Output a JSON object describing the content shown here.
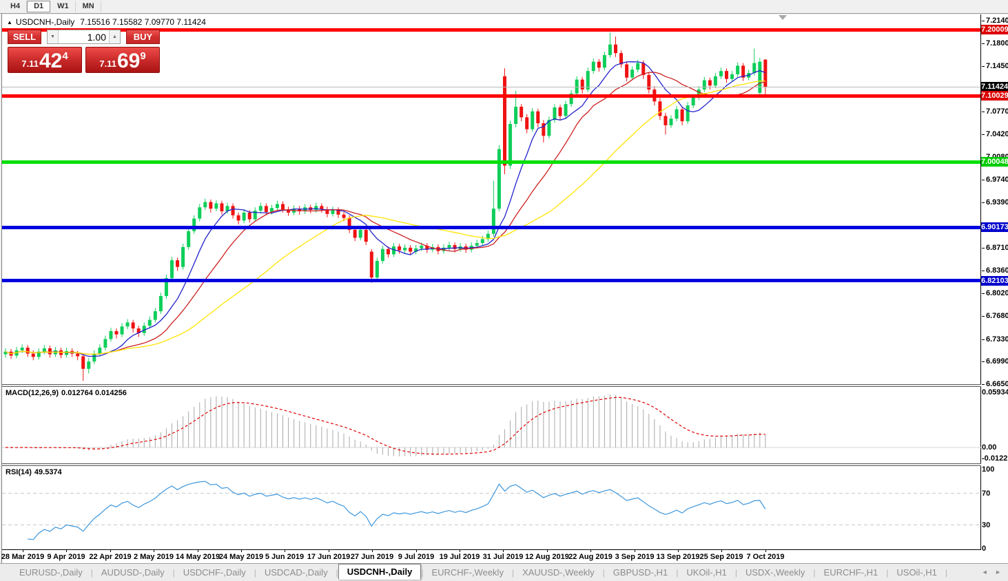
{
  "window": {
    "timeframes": [
      {
        "label": "H4",
        "active": false
      },
      {
        "label": "D1",
        "active": true
      },
      {
        "label": "W1",
        "active": false
      },
      {
        "label": "MN",
        "active": false
      }
    ]
  },
  "chart": {
    "collapse_arrow": "▲",
    "symbol_title": "USDCNH-,Daily",
    "ohlc_line": "7.15516 7.15582 7.09770 7.11424"
  },
  "trade": {
    "sell_label": "SELL",
    "buy_label": "BUY",
    "volume": "1.00",
    "spin_down": "▼",
    "spin_up": "▲",
    "sell_price": {
      "prefix": "7.11",
      "main": "42",
      "sup": "4"
    },
    "buy_price": {
      "prefix": "7.11",
      "main": "69",
      "sup": "9"
    }
  },
  "price_axis": {
    "ticks": [
      "7.21400",
      "7.18000",
      "7.14500",
      "7.07700",
      "7.04200",
      "7.00800",
      "6.97400",
      "6.93900",
      "6.87100",
      "6.83600",
      "6.80200",
      "6.76800",
      "6.73300",
      "6.69900",
      "6.66500"
    ],
    "badges": [
      {
        "label": "7.20009",
        "value": 7.20009,
        "color": "#dd0000"
      },
      {
        "label": "7.11424",
        "value": 7.11424,
        "color": "#000000"
      },
      {
        "label": "7.10029",
        "value": 7.10029,
        "color": "#dd0000"
      },
      {
        "label": "7.00048",
        "value": 7.00048,
        "color": "#00cc00"
      },
      {
        "label": "6.90173",
        "value": 6.90173,
        "color": "#0000cc"
      },
      {
        "label": "6.82103",
        "value": 6.82103,
        "color": "#0000cc"
      }
    ]
  },
  "chart_data": {
    "type": "candlestick",
    "symbol": "USDCNH-",
    "timeframe": "Daily",
    "ylim": [
      6.665,
      7.2234
    ],
    "up_color": "#0fce5a",
    "down_color": "#ef1212",
    "x_dates": [
      "28 Mar 2019",
      "9 Apr 2019",
      "22 Apr 2019",
      "2 May 2019",
      "14 May 2019",
      "24 May 2019",
      "5 Jun 2019",
      "17 Jun 2019",
      "27 Jun 2019",
      "9 Jul 2019",
      "19 Jul 2019",
      "31 Jul 2019",
      "12 Aug 2019",
      "22 Aug 2019",
      "3 Sep 2019",
      "13 Sep 2019",
      "25 Sep 2019",
      "7 Oct 2019"
    ],
    "candles_ohlc": [
      [
        6.71,
        6.719,
        6.705,
        6.714
      ],
      [
        6.714,
        6.718,
        6.703,
        6.708
      ],
      [
        6.708,
        6.721,
        6.704,
        6.716
      ],
      [
        6.716,
        6.725,
        6.712,
        6.72
      ],
      [
        6.72,
        6.724,
        6.706,
        6.711
      ],
      [
        6.711,
        6.716,
        6.701,
        6.706
      ],
      [
        6.706,
        6.719,
        6.702,
        6.714
      ],
      [
        6.714,
        6.724,
        6.71,
        6.719
      ],
      [
        6.719,
        6.723,
        6.705,
        6.71
      ],
      [
        6.71,
        6.721,
        6.706,
        6.716
      ],
      [
        6.716,
        6.72,
        6.704,
        6.709
      ],
      [
        6.709,
        6.72,
        6.705,
        6.715
      ],
      [
        6.715,
        6.719,
        6.706,
        6.711
      ],
      [
        6.711,
        6.715,
        6.701,
        6.707
      ],
      [
        6.707,
        6.71,
        6.67,
        6.688
      ],
      [
        6.688,
        6.704,
        6.681,
        6.699
      ],
      [
        6.699,
        6.716,
        6.695,
        6.711
      ],
      [
        6.711,
        6.725,
        6.707,
        6.72
      ],
      [
        6.72,
        6.738,
        6.716,
        6.733
      ],
      [
        6.733,
        6.75,
        6.729,
        6.745
      ],
      [
        6.745,
        6.749,
        6.734,
        6.74
      ],
      [
        6.74,
        6.757,
        6.736,
        6.752
      ],
      [
        6.752,
        6.763,
        6.748,
        6.758
      ],
      [
        6.758,
        6.762,
        6.743,
        6.749
      ],
      [
        6.749,
        6.753,
        6.736,
        6.742
      ],
      [
        6.742,
        6.758,
        6.738,
        6.753
      ],
      [
        6.753,
        6.767,
        6.749,
        6.762
      ],
      [
        6.762,
        6.78,
        6.758,
        6.775
      ],
      [
        6.775,
        6.803,
        6.771,
        6.798
      ],
      [
        6.798,
        6.83,
        6.794,
        6.825
      ],
      [
        6.825,
        6.857,
        6.821,
        6.852
      ],
      [
        6.852,
        6.856,
        6.836,
        6.842
      ],
      [
        6.842,
        6.877,
        6.838,
        6.872
      ],
      [
        6.872,
        6.901,
        6.868,
        6.896
      ],
      [
        6.896,
        6.92,
        6.892,
        6.915
      ],
      [
        6.915,
        6.937,
        6.911,
        6.932
      ],
      [
        6.932,
        6.945,
        6.928,
        6.94
      ],
      [
        6.94,
        6.944,
        6.924,
        6.93
      ],
      [
        6.93,
        6.943,
        6.926,
        6.938
      ],
      [
        6.938,
        6.942,
        6.921,
        6.926
      ],
      [
        6.926,
        6.939,
        6.922,
        6.934
      ],
      [
        6.934,
        6.938,
        6.915,
        6.92
      ],
      [
        6.92,
        6.924,
        6.906,
        6.912
      ],
      [
        6.912,
        6.929,
        6.908,
        6.924
      ],
      [
        6.924,
        6.928,
        6.909,
        6.914
      ],
      [
        6.914,
        6.932,
        6.91,
        6.927
      ],
      [
        6.927,
        6.939,
        6.923,
        6.934
      ],
      [
        6.934,
        6.938,
        6.92,
        6.925
      ],
      [
        6.925,
        6.936,
        6.921,
        6.931
      ],
      [
        6.931,
        6.942,
        6.927,
        6.937
      ],
      [
        6.937,
        6.941,
        6.924,
        6.929
      ],
      [
        6.929,
        6.933,
        6.919,
        6.924
      ],
      [
        6.924,
        6.935,
        6.92,
        6.93
      ],
      [
        6.93,
        6.934,
        6.921,
        6.926
      ],
      [
        6.926,
        6.937,
        6.922,
        6.932
      ],
      [
        6.932,
        6.936,
        6.923,
        6.928
      ],
      [
        6.928,
        6.939,
        6.924,
        6.934
      ],
      [
        6.934,
        6.938,
        6.924,
        6.929
      ],
      [
        6.929,
        6.933,
        6.917,
        6.922
      ],
      [
        6.922,
        6.933,
        6.918,
        6.928
      ],
      [
        6.928,
        6.932,
        6.916,
        6.921
      ],
      [
        6.921,
        6.925,
        6.911,
        6.916
      ],
      [
        6.916,
        6.92,
        6.893,
        6.898
      ],
      [
        6.898,
        6.903,
        6.881,
        6.886
      ],
      [
        6.886,
        6.903,
        6.882,
        6.898
      ],
      [
        6.898,
        6.902,
        6.875,
        6.88
      ],
      [
        6.865,
        6.869,
        6.818,
        6.826
      ],
      [
        6.826,
        6.856,
        6.822,
        6.851
      ],
      [
        6.851,
        6.874,
        6.847,
        6.869
      ],
      [
        6.869,
        6.873,
        6.856,
        6.861
      ],
      [
        6.861,
        6.878,
        6.857,
        6.873
      ],
      [
        6.873,
        6.877,
        6.862,
        6.867
      ],
      [
        6.867,
        6.876,
        6.863,
        6.871
      ],
      [
        6.871,
        6.875,
        6.86,
        6.865
      ],
      [
        6.865,
        6.875,
        6.861,
        6.87
      ],
      [
        6.87,
        6.879,
        6.866,
        6.874
      ],
      [
        6.874,
        6.878,
        6.863,
        6.868
      ],
      [
        6.868,
        6.877,
        6.864,
        6.872
      ],
      [
        6.872,
        6.876,
        6.861,
        6.866
      ],
      [
        6.866,
        6.876,
        6.862,
        6.871
      ],
      [
        6.871,
        6.88,
        6.867,
        6.875
      ],
      [
        6.875,
        6.879,
        6.864,
        6.869
      ],
      [
        6.869,
        6.878,
        6.865,
        6.873
      ],
      [
        6.873,
        6.877,
        6.863,
        6.868
      ],
      [
        6.868,
        6.879,
        6.864,
        6.874
      ],
      [
        6.874,
        6.883,
        6.87,
        6.878
      ],
      [
        6.878,
        6.889,
        6.874,
        6.884
      ],
      [
        6.884,
        6.897,
        6.88,
        6.892
      ],
      [
        6.892,
        6.972,
        6.888,
        6.93
      ],
      [
        6.93,
        7.026,
        6.926,
        7.02
      ],
      [
        7.13,
        7.142,
        6.982,
        6.995
      ],
      [
        6.995,
        7.063,
        6.99,
        7.058
      ],
      [
        7.058,
        7.108,
        7.053,
        7.084
      ],
      [
        7.084,
        7.088,
        7.062,
        7.068
      ],
      [
        7.068,
        7.073,
        7.044,
        7.05
      ],
      [
        7.05,
        7.082,
        7.046,
        7.077
      ],
      [
        7.077,
        7.081,
        7.053,
        7.059
      ],
      [
        7.059,
        7.064,
        7.03,
        7.04
      ],
      [
        7.04,
        7.069,
        7.036,
        7.064
      ],
      [
        7.064,
        7.088,
        7.06,
        7.083
      ],
      [
        7.083,
        7.087,
        7.064,
        7.07
      ],
      [
        7.07,
        7.093,
        7.066,
        7.088
      ],
      [
        7.088,
        7.109,
        7.084,
        7.104
      ],
      [
        7.104,
        7.13,
        7.1,
        7.125
      ],
      [
        7.125,
        7.129,
        7.104,
        7.11
      ],
      [
        7.11,
        7.143,
        7.106,
        7.138
      ],
      [
        7.138,
        7.157,
        7.134,
        7.152
      ],
      [
        7.152,
        7.156,
        7.137,
        7.143
      ],
      [
        7.143,
        7.167,
        7.139,
        7.162
      ],
      [
        7.162,
        7.196,
        7.158,
        7.178
      ],
      [
        7.178,
        7.19,
        7.159,
        7.165
      ],
      [
        7.165,
        7.169,
        7.143,
        7.148
      ],
      [
        7.148,
        7.152,
        7.122,
        7.128
      ],
      [
        7.128,
        7.145,
        7.124,
        7.14
      ],
      [
        7.14,
        7.155,
        7.136,
        7.15
      ],
      [
        7.15,
        7.154,
        7.126,
        7.132
      ],
      [
        7.132,
        7.136,
        7.104,
        7.11
      ],
      [
        7.11,
        7.115,
        7.086,
        7.092
      ],
      [
        7.092,
        7.097,
        7.064,
        7.07
      ],
      [
        7.07,
        7.075,
        7.042,
        7.056
      ],
      [
        7.056,
        7.071,
        7.052,
        7.066
      ],
      [
        7.066,
        7.085,
        7.062,
        7.08
      ],
      [
        7.08,
        7.084,
        7.056,
        7.062
      ],
      [
        7.062,
        7.091,
        7.058,
        7.086
      ],
      [
        7.086,
        7.103,
        7.082,
        7.098
      ],
      [
        7.098,
        7.115,
        7.094,
        7.11
      ],
      [
        7.11,
        7.129,
        7.106,
        7.124
      ],
      [
        7.124,
        7.128,
        7.11,
        7.116
      ],
      [
        7.116,
        7.135,
        7.112,
        7.13
      ],
      [
        7.13,
        7.143,
        7.126,
        7.138
      ],
      [
        7.138,
        7.142,
        7.12,
        7.126
      ],
      [
        7.126,
        7.138,
        7.122,
        7.133
      ],
      [
        7.133,
        7.151,
        7.129,
        7.146
      ],
      [
        7.146,
        7.15,
        7.123,
        7.128
      ],
      [
        7.128,
        7.14,
        7.124,
        7.135
      ],
      [
        7.135,
        7.172,
        7.131,
        7.15
      ],
      [
        7.105,
        7.158,
        7.098,
        7.152
      ],
      [
        7.15516,
        7.15582,
        7.0977,
        7.11424
      ]
    ],
    "moving_averages": [
      {
        "period": 8,
        "color": "#2222cc"
      },
      {
        "period": 16,
        "color": "#cc2020"
      },
      {
        "period": 34,
        "color": "#ffe400"
      }
    ],
    "sr_lines": [
      {
        "price": 7.20009,
        "color": "#ff0000",
        "width": 5
      },
      {
        "price": 7.10029,
        "color": "#ff0000",
        "width": 5
      },
      {
        "price": 7.00048,
        "color": "#00e000",
        "width": 5
      },
      {
        "price": 6.90173,
        "color": "#0000e0",
        "width": 5
      },
      {
        "price": 6.82103,
        "color": "#0000e0",
        "width": 5
      }
    ],
    "bid_line": {
      "price": 7.11424,
      "color": "#b8b8b8",
      "width": 1
    },
    "macd": {
      "label": "MACD(12,26,9)",
      "values_text": "0.012764 0.014256",
      "fast": 12,
      "slow": 26,
      "signal": 9,
      "axis_max": "0.059344",
      "axis_zero": "0.00",
      "axis_min": "-0.012219",
      "hist_color": "#a8a8a8",
      "signal_color": "#e00000"
    },
    "rsi": {
      "label": "RSI(14)",
      "value_text": "49.5374",
      "period": 14,
      "levels": [
        70,
        30
      ],
      "axis_labels": [
        100,
        70,
        30,
        0
      ],
      "color": "#3c96dc"
    }
  },
  "tabs": {
    "items": [
      {
        "label": "EURUSD-,Daily",
        "active": false
      },
      {
        "label": "AUDUSD-,Daily",
        "active": false
      },
      {
        "label": "USDCHF-,Daily",
        "active": false
      },
      {
        "label": "USDCAD-,Daily",
        "active": false
      },
      {
        "label": "USDCNH-,Daily",
        "active": true
      },
      {
        "label": "EURCHF-,Weekly",
        "active": false
      },
      {
        "label": "XAUUSD-,Weekly",
        "active": false
      },
      {
        "label": "GBPUSD-,H1",
        "active": false
      },
      {
        "label": "UKOil-,H1",
        "active": false
      },
      {
        "label": "USDX-,Weekly",
        "active": false
      },
      {
        "label": "EURCHF-,H1",
        "active": false
      },
      {
        "label": "USOil-,H1",
        "active": false
      }
    ],
    "scroll_left": "◄",
    "scroll_right": "►"
  }
}
